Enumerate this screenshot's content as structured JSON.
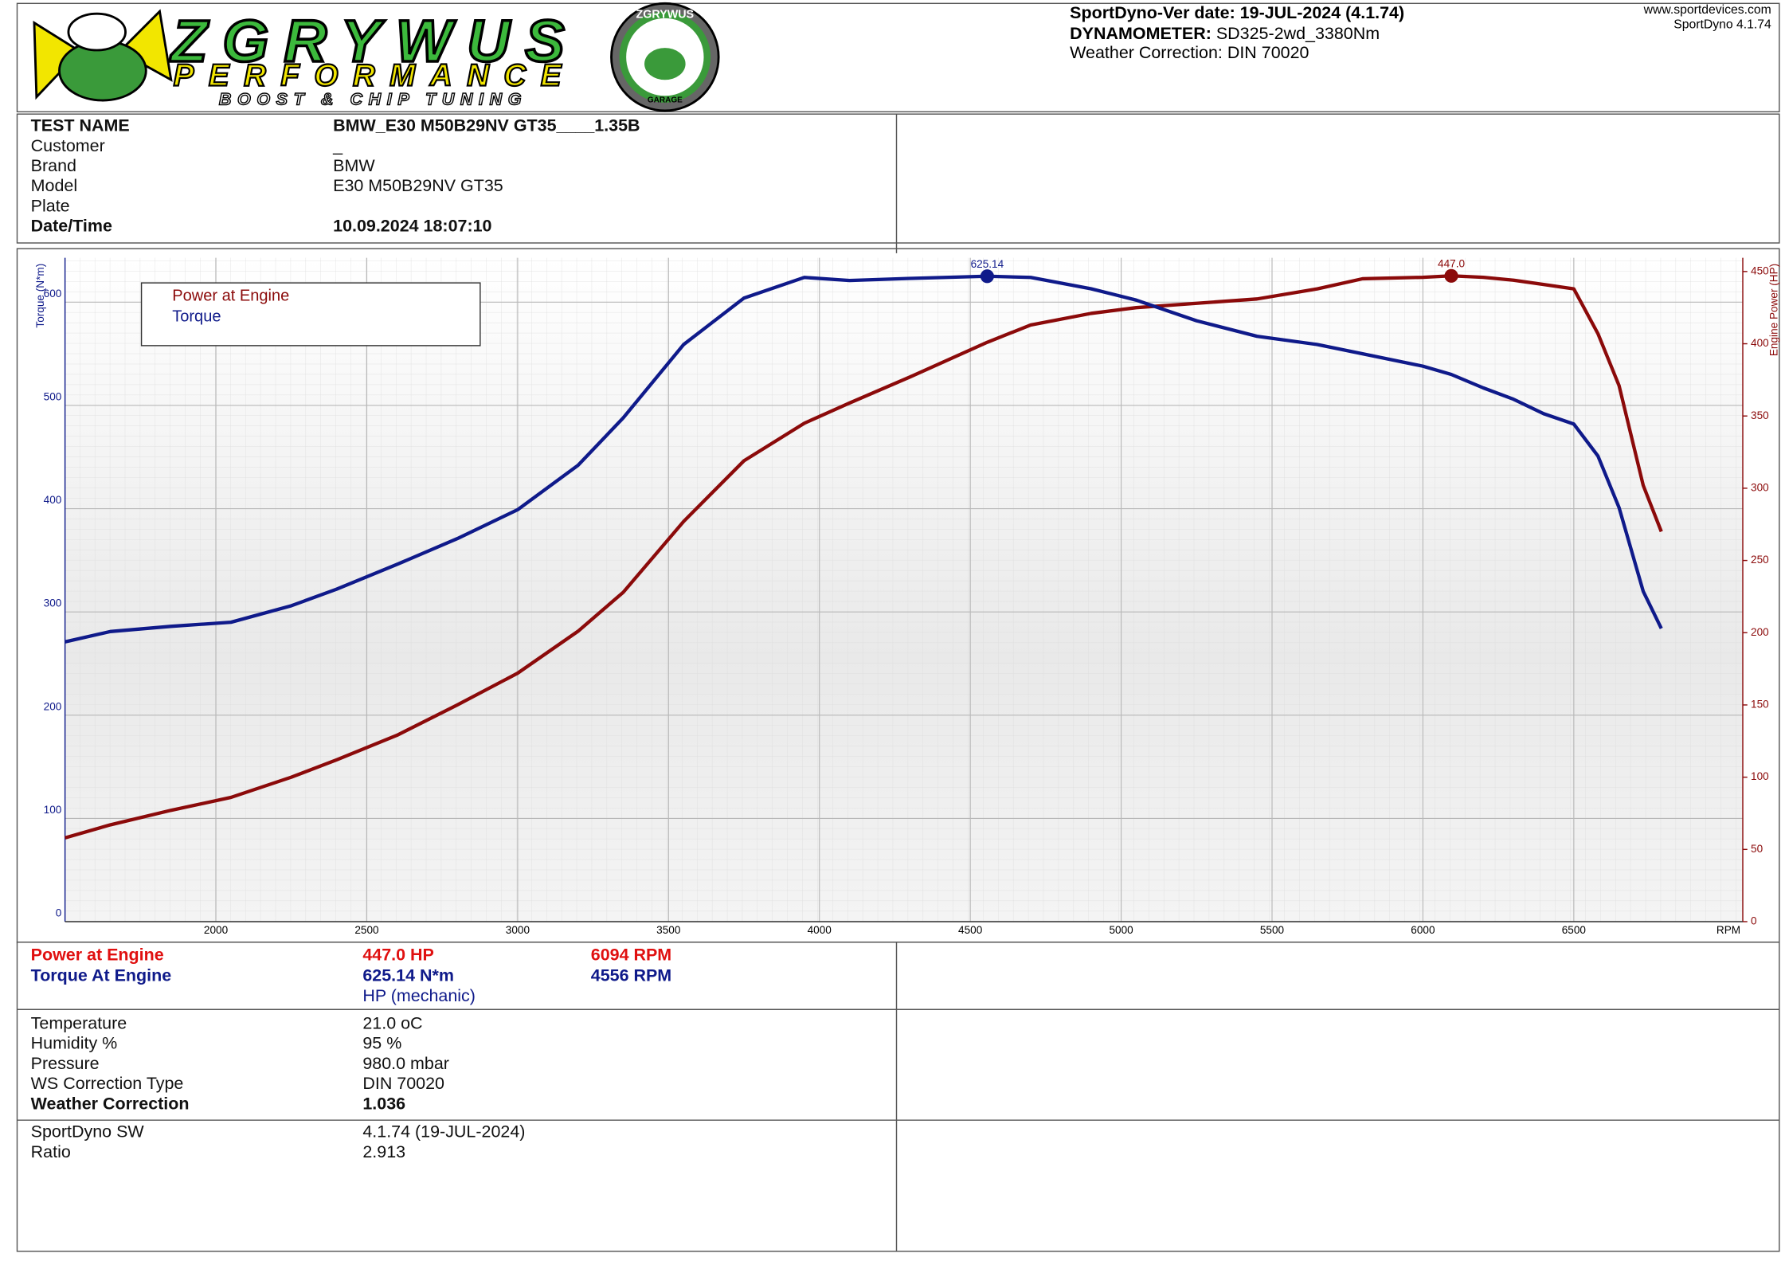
{
  "header": {
    "logo": {
      "brand": "ZGRYWUS",
      "line2": "PERFORMANCE",
      "line3": "BOOST & CHIP TUNING"
    },
    "badge": {
      "top": "ZGRYWUS",
      "bottom": "GARAGE"
    },
    "version_label": "SportDyno-Ver date:",
    "version_value": "19-JUL-2024 (4.1.74)",
    "dyno_label": "DYNAMOMETER:",
    "dyno_value": "SD325-2wd_3380Nm",
    "weather": "Weather Correction: DIN 70020",
    "website": "www.sportdevices.com",
    "software": "SportDyno 4.1.74"
  },
  "test_info": [
    {
      "label": "TEST NAME",
      "value": "BMW_E30 M50B29NV GT35____1.35B",
      "bold": true
    },
    {
      "label": "Customer",
      "value": "_"
    },
    {
      "label": "Brand",
      "value": "BMW"
    },
    {
      "label": "Model",
      "value": "E30 M50B29NV GT35"
    },
    {
      "label": "Plate"
    },
    {
      "label": "Date/Time",
      "value": "10.09.2024 18:07:10",
      "bold": true
    }
  ],
  "chart_data": {
    "type": "line",
    "x_label": "RPM",
    "y_label": "Torque (N*m)",
    "y2_label": "Engine Power (HP)",
    "x": [
      1500,
      1650,
      1850,
      2050,
      2250,
      2400,
      2600,
      2800,
      3000,
      3200,
      3350,
      3550,
      3750,
      3950,
      4100,
      4300,
      4556,
      4700,
      4900,
      5050,
      5250,
      5450,
      5650,
      5800,
      6000,
      6094,
      6200,
      6300,
      6400,
      6500,
      6580,
      6650,
      6730,
      6790
    ],
    "series": [
      {
        "name": "Power at Engine",
        "color": "#8b0a0a",
        "axis": "y2",
        "values": [
          58,
          67,
          77,
          86,
          100,
          112,
          129,
          150,
          172,
          201,
          228,
          277,
          319,
          345,
          359,
          377,
          401,
          413,
          421,
          425,
          428,
          431,
          438,
          445,
          446,
          447.0,
          446,
          444,
          441,
          438,
          407,
          371,
          302,
          270
        ]
      },
      {
        "name": "Torque",
        "color": "#0f1a8a",
        "values": [
          271,
          281,
          286,
          290,
          306,
          322,
          346,
          371,
          399,
          442,
          488,
          559,
          604,
          624,
          621,
          623,
          625.14,
          624,
          613,
          602,
          582,
          567,
          559,
          550,
          538,
          530,
          517,
          506,
          492,
          482,
          451,
          401,
          320,
          284
        ]
      }
    ],
    "xlim": [
      1500,
      7060
    ],
    "xticks": [
      2000,
      2500,
      3000,
      3500,
      4000,
      4500,
      5000,
      5500,
      6000,
      6500
    ],
    "ylim": [
      0,
      643
    ],
    "yticks": [
      0,
      100,
      200,
      300,
      400,
      500,
      600
    ],
    "y2lim": [
      0,
      459.5
    ],
    "y2ticks": [
      0,
      50,
      100,
      150,
      200,
      250,
      300,
      350,
      400,
      450
    ],
    "grid": true,
    "legend": "top-left",
    "annotations": [
      {
        "x": 4556,
        "y": 625.14,
        "label": "625.14",
        "color": "#0f1a8a"
      },
      {
        "x": 6094,
        "y": 447.0,
        "label": "447.0",
        "axis": "y2",
        "color": "#8b0a0a"
      }
    ]
  },
  "results": {
    "power": {
      "label": "Power at Engine",
      "value": "447.0 HP",
      "rpm": "6094 RPM"
    },
    "torque": {
      "label": "Torque At Engine",
      "value": "625.14 N*m",
      "rpm": "4556 RPM"
    },
    "note": "HP (mechanic)"
  },
  "conditions": [
    {
      "label": "Temperature",
      "value": "21.0 oC"
    },
    {
      "label": "Humidity %",
      "value": "95 %"
    },
    {
      "label": "Pressure",
      "value": "980.0 mbar"
    },
    {
      "label": "WS Correction Type",
      "value": "DIN 70020"
    },
    {
      "label": "Weather Correction",
      "value": "1.036",
      "bold": true
    }
  ],
  "software": [
    {
      "label": "SportDyno SW",
      "value": "4.1.74 (19-JUL-2024)"
    },
    {
      "label": "Ratio",
      "value": "2.913"
    }
  ]
}
